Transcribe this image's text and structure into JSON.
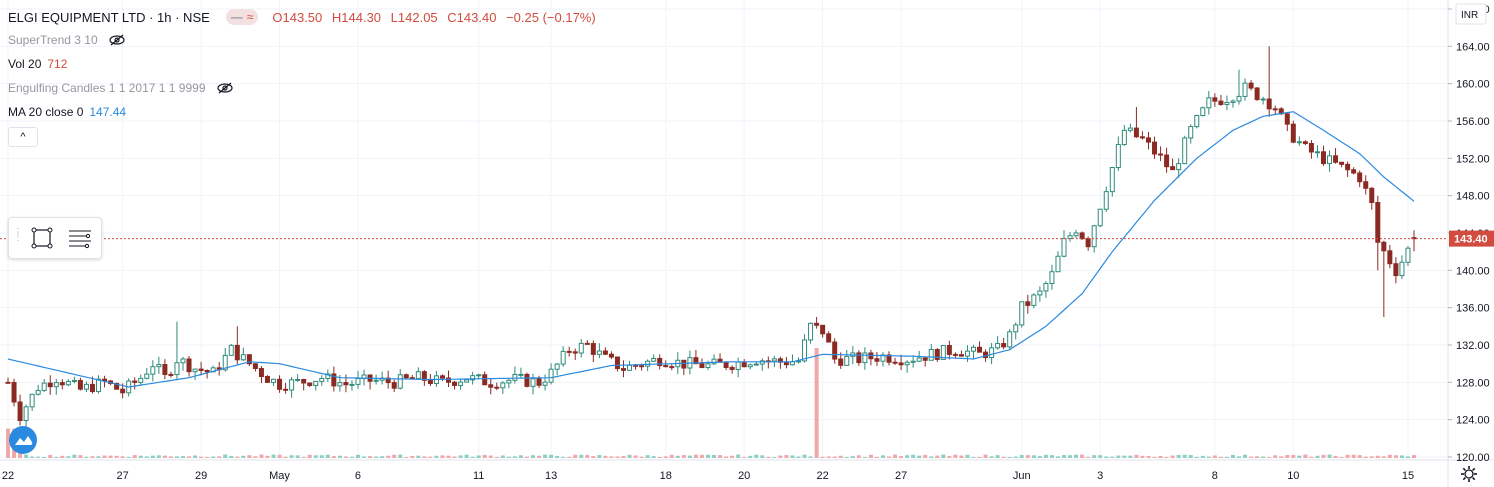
{
  "header": {
    "title": "ELGI EQUIPMENT LTD · 1h · NSE",
    "pill_label": "≈",
    "ohlc": {
      "o": "O143.50",
      "h": "H144.30",
      "l": "L142.05",
      "c": "C143.40",
      "chg": "−0.25 (−0.17%)"
    }
  },
  "indicators": [
    {
      "name": "SuperTrend 3 10",
      "value": ""
    },
    {
      "name": "Vol 20",
      "value": "712"
    },
    {
      "name": "Engulfing Candles 1 1 2017 1 1 9999",
      "value": ""
    },
    {
      "name": "MA 20 close 0",
      "value": "147.44"
    }
  ],
  "collapse_label": "^",
  "colors": {
    "up": "#2e8b7b",
    "up_fill": "#ffffff",
    "down": "#8b2a22",
    "ma": "#2a8adf",
    "last_price": "#d14b3f",
    "grid": "#f0f3fa",
    "axis_text": "#131722",
    "vol_up": "#8fd0c4",
    "vol_down": "#f0a8a8"
  },
  "chart_data": {
    "type": "candlestick",
    "currency": "INR",
    "ylim": [
      120,
      168
    ],
    "y_ticks": [
      "120.00",
      "124.00",
      "128.00",
      "132.00",
      "136.00",
      "140.00",
      "144.00",
      "148.00",
      "152.00",
      "156.00",
      "160.00",
      "164.00",
      "168.00"
    ],
    "last_price": "143.40",
    "x_ticks": [
      {
        "label": "22",
        "i": 0
      },
      {
        "label": "27",
        "i": 19
      },
      {
        "label": "29",
        "i": 32
      },
      {
        "label": "May",
        "i": 45
      },
      {
        "label": "6",
        "i": 58
      },
      {
        "label": "11",
        "i": 78
      },
      {
        "label": "13",
        "i": 90
      },
      {
        "label": "18",
        "i": 109
      },
      {
        "label": "20",
        "i": 122
      },
      {
        "label": "22",
        "i": 135
      },
      {
        "label": "27",
        "i": 148
      },
      {
        "label": "Jun",
        "i": 168
      },
      {
        "label": "3",
        "i": 181
      },
      {
        "label": "8",
        "i": 200
      },
      {
        "label": "10",
        "i": 213
      },
      {
        "label": "15",
        "i": 232
      }
    ],
    "n_bars": 234,
    "waypoints": [
      [
        0,
        128.0
      ],
      [
        2,
        124.5
      ],
      [
        5,
        127.5
      ],
      [
        8,
        128.5
      ],
      [
        12,
        127.2
      ],
      [
        16,
        128.0
      ],
      [
        19,
        127.0
      ],
      [
        22,
        128.5
      ],
      [
        24,
        130.0
      ],
      [
        26,
        128.5
      ],
      [
        28,
        130.5
      ],
      [
        31,
        129.5
      ],
      [
        34,
        129.0
      ],
      [
        37,
        131.5
      ],
      [
        40,
        130.0
      ],
      [
        43,
        128.5
      ],
      [
        45,
        127.8
      ],
      [
        48,
        128.0
      ],
      [
        52,
        128.5
      ],
      [
        56,
        127.8
      ],
      [
        60,
        128.2
      ],
      [
        64,
        128.0
      ],
      [
        68,
        128.5
      ],
      [
        72,
        128.0
      ],
      [
        76,
        128.5
      ],
      [
        80,
        128.0
      ],
      [
        84,
        128.3
      ],
      [
        88,
        128.0
      ],
      [
        90,
        129.0
      ],
      [
        93,
        131.5
      ],
      [
        96,
        132.0
      ],
      [
        99,
        130.5
      ],
      [
        102,
        129.5
      ],
      [
        105,
        130.0
      ],
      [
        108,
        130.5
      ],
      [
        112,
        130.0
      ],
      [
        116,
        129.8
      ],
      [
        120,
        130.0
      ],
      [
        124,
        130.5
      ],
      [
        128,
        130.2
      ],
      [
        131,
        130.3
      ],
      [
        133,
        134.0
      ],
      [
        135,
        133.5
      ],
      [
        137,
        130.5
      ],
      [
        141,
        130.5
      ],
      [
        145,
        130.8
      ],
      [
        149,
        130.5
      ],
      [
        153,
        131.0
      ],
      [
        157,
        131.5
      ],
      [
        161,
        131.0
      ],
      [
        164,
        131.5
      ],
      [
        166,
        133.0
      ],
      [
        168,
        136.0
      ],
      [
        171,
        137.5
      ],
      [
        173,
        139.5
      ],
      [
        175,
        143.0
      ],
      [
        177,
        144.5
      ],
      [
        179,
        143.0
      ],
      [
        181,
        147.0
      ],
      [
        183,
        151.0
      ],
      [
        185,
        155.0
      ],
      [
        188,
        154.0
      ],
      [
        191,
        152.0
      ],
      [
        193,
        150.5
      ],
      [
        196,
        155.0
      ],
      [
        199,
        158.0
      ],
      [
        202,
        158.5
      ],
      [
        205,
        159.5
      ],
      [
        208,
        158.5
      ],
      [
        210,
        157.5
      ],
      [
        212,
        155.0
      ],
      [
        215,
        153.0
      ],
      [
        218,
        152.0
      ],
      [
        221,
        151.0
      ],
      [
        224,
        150.0
      ],
      [
        226,
        147.0
      ],
      [
        227,
        143.0
      ],
      [
        229,
        141.0
      ],
      [
        230,
        140.0
      ],
      [
        231,
        141.0
      ],
      [
        233,
        143.4
      ]
    ],
    "spikes": [
      {
        "i": 28,
        "high": 134.5
      },
      {
        "i": 38,
        "high": 134.0
      },
      {
        "i": 134,
        "high": 135.0
      },
      {
        "i": 187,
        "high": 157.5
      },
      {
        "i": 204,
        "high": 161.5
      },
      {
        "i": 209,
        "high": 164.0
      },
      {
        "i": 227,
        "low": 140.0
      },
      {
        "i": 228,
        "low": 135.0
      }
    ],
    "ma": [
      [
        0,
        130.5
      ],
      [
        10,
        129.0
      ],
      [
        20,
        127.5
      ],
      [
        30,
        128.5
      ],
      [
        40,
        130.2
      ],
      [
        45,
        130.0
      ],
      [
        55,
        128.5
      ],
      [
        70,
        128.3
      ],
      [
        90,
        128.5
      ],
      [
        100,
        129.8
      ],
      [
        120,
        130.2
      ],
      [
        130,
        130.2
      ],
      [
        135,
        131.0
      ],
      [
        150,
        130.8
      ],
      [
        160,
        130.5
      ],
      [
        166,
        131.5
      ],
      [
        172,
        134.0
      ],
      [
        178,
        137.5
      ],
      [
        183,
        142.0
      ],
      [
        190,
        147.5
      ],
      [
        197,
        152.0
      ],
      [
        203,
        155.0
      ],
      [
        208,
        156.5
      ],
      [
        213,
        157.0
      ],
      [
        218,
        155.0
      ],
      [
        224,
        152.5
      ],
      [
        228,
        150.0
      ],
      [
        233,
        147.4
      ]
    ],
    "volume_spike_bars": [
      0,
      1,
      2,
      134
    ]
  }
}
